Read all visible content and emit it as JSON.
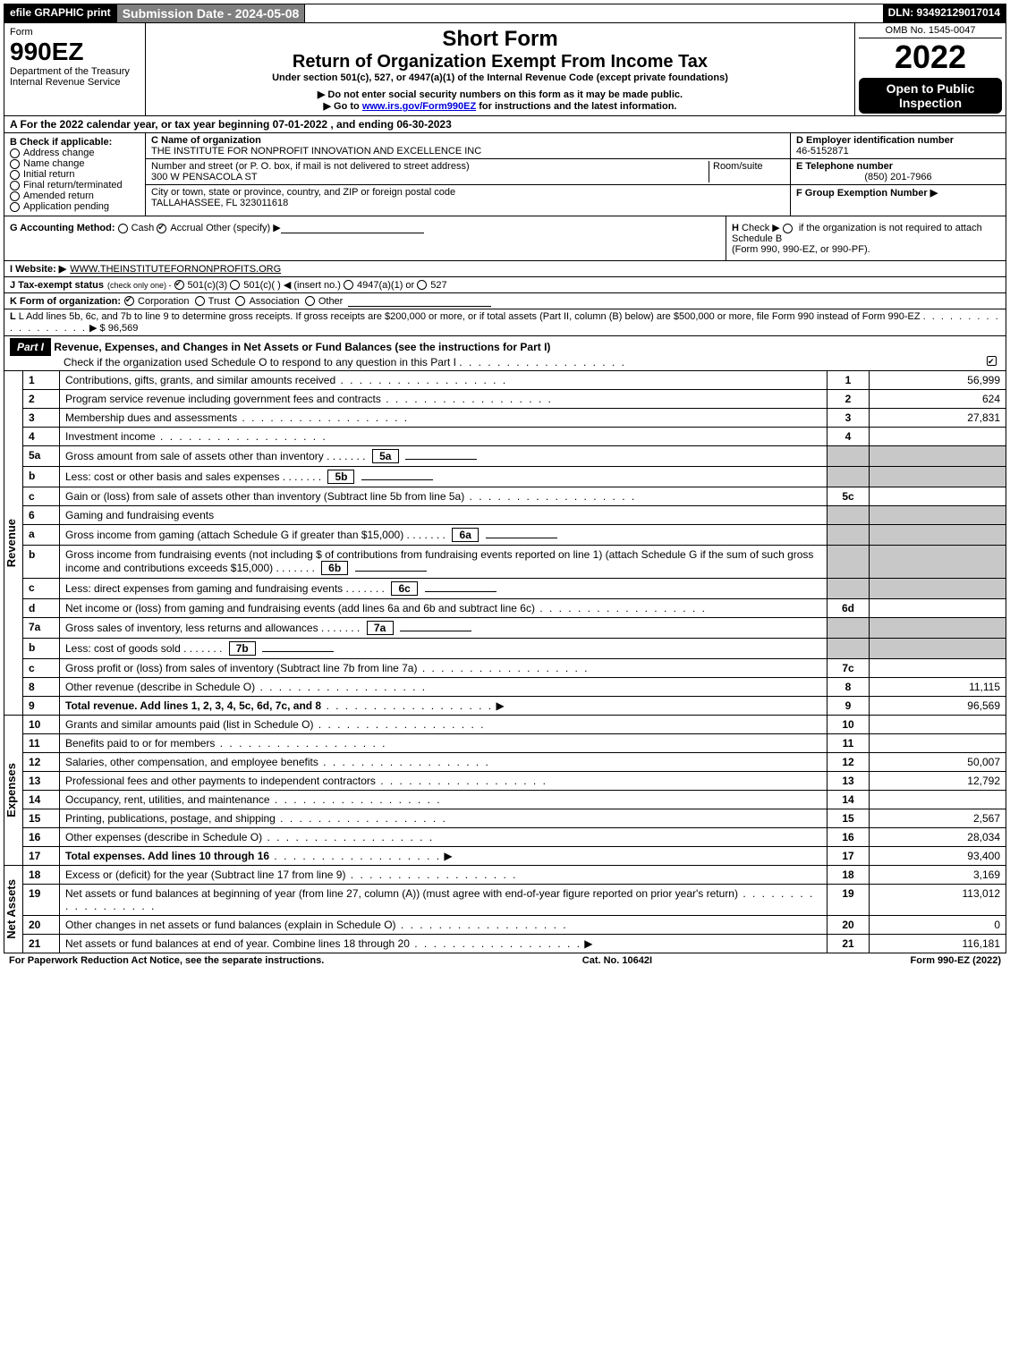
{
  "topbar": {
    "efile": "efile GRAPHIC print",
    "submission": "Submission Date - 2024-05-08",
    "dln": "DLN: 93492129017014"
  },
  "header": {
    "form_label": "Form",
    "form_number": "990EZ",
    "dept1": "Department of the Treasury",
    "dept2": "Internal Revenue Service",
    "short_form": "Short Form",
    "title": "Return of Organization Exempt From Income Tax",
    "under": "Under section 501(c), 527, or 4947(a)(1) of the Internal Revenue Code (except private foundations)",
    "note1": "▶ Do not enter social security numbers on this form as it may be made public.",
    "note2_pre": "▶ Go to ",
    "note2_link": "www.irs.gov/Form990EZ",
    "note2_post": " for instructions and the latest information.",
    "omb": "OMB No. 1545-0047",
    "year": "2022",
    "open": "Open to Public Inspection"
  },
  "sectionA": "A  For the 2022 calendar year, or tax year beginning 07-01-2022 , and ending 06-30-2023",
  "colB": {
    "title": "B  Check if applicable:",
    "items": [
      "Address change",
      "Name change",
      "Initial return",
      "Final return/terminated",
      "Amended return",
      "Application pending"
    ]
  },
  "colC": {
    "c_label": "C Name of organization",
    "org_name": "THE INSTITUTE FOR NONPROFIT INNOVATION AND EXCELLENCE INC",
    "addr_label": "Number and street (or P. O. box, if mail is not delivered to street address)",
    "room_label": "Room/suite",
    "street": "300 W PENSACOLA ST",
    "city_label": "City or town, state or province, country, and ZIP or foreign postal code",
    "city": "TALLAHASSEE, FL  323011618"
  },
  "colD": {
    "d_label": "D Employer identification number",
    "ein": "46-5152871",
    "e_label": "E Telephone number",
    "phone": "(850) 201-7966",
    "f_label": "F Group Exemption Number   ▶"
  },
  "rowG": {
    "label": "G Accounting Method:",
    "cash": "Cash",
    "accrual": "Accrual",
    "other": "Other (specify) ▶"
  },
  "rowH": {
    "label": "H",
    "text1": "Check ▶",
    "text2": "if the organization is not required to attach Schedule B",
    "text3": "(Form 990, 990-EZ, or 990-PF)."
  },
  "rowI": {
    "label": "I Website: ▶",
    "site": "WWW.THEINSTITUTEFORNONPROFITS.ORG"
  },
  "rowJ": {
    "label": "J Tax-exempt status",
    "sub": "(check only one) -",
    "opt1": "501(c)(3)",
    "opt2": "501(c)(  ) ◀ (insert no.)",
    "opt3": "4947(a)(1) or",
    "opt4": "527"
  },
  "rowK": {
    "label": "K Form of organization:",
    "opts": [
      "Corporation",
      "Trust",
      "Association",
      "Other"
    ]
  },
  "rowL": {
    "text": "L Add lines 5b, 6c, and 7b to line 9 to determine gross receipts. If gross receipts are $200,000 or more, or if total assets (Part II, column (B) below) are $500,000 or more, file Form 990 instead of Form 990-EZ",
    "amount": "▶ $ 96,569"
  },
  "part1": {
    "label": "Part I",
    "title": "Revenue, Expenses, and Changes in Net Assets or Fund Balances (see the instructions for Part I)",
    "check": "Check if the organization used Schedule O to respond to any question in this Part I"
  },
  "revenue": {
    "vert": "Revenue",
    "rows": [
      {
        "n": "1",
        "d": "Contributions, gifts, grants, and similar amounts received",
        "box": "1",
        "amt": "56,999"
      },
      {
        "n": "2",
        "d": "Program service revenue including government fees and contracts",
        "box": "2",
        "amt": "624"
      },
      {
        "n": "3",
        "d": "Membership dues and assessments",
        "box": "3",
        "amt": "27,831"
      },
      {
        "n": "4",
        "d": "Investment income",
        "box": "4",
        "amt": ""
      },
      {
        "n": "5a",
        "d": "Gross amount from sale of assets other than inventory",
        "sub": "5a",
        "shaded": true
      },
      {
        "n": "b",
        "d": "Less: cost or other basis and sales expenses",
        "sub": "5b",
        "shaded": true
      },
      {
        "n": "c",
        "d": "Gain or (loss) from sale of assets other than inventory (Subtract line 5b from line 5a)",
        "box": "5c",
        "amt": ""
      },
      {
        "n": "6",
        "d": "Gaming and fundraising events",
        "shaded": true,
        "nobox": true
      },
      {
        "n": "a",
        "d": "Gross income from gaming (attach Schedule G if greater than $15,000)",
        "sub": "6a",
        "shaded": true
      },
      {
        "n": "b",
        "d": "Gross income from fundraising events (not including $                    of contributions from fundraising events reported on line 1) (attach Schedule G if the sum of such gross income and contributions exceeds $15,000)",
        "sub": "6b",
        "shaded": true
      },
      {
        "n": "c",
        "d": "Less: direct expenses from gaming and fundraising events",
        "sub": "6c",
        "shaded": true
      },
      {
        "n": "d",
        "d": "Net income or (loss) from gaming and fundraising events (add lines 6a and 6b and subtract line 6c)",
        "box": "6d",
        "amt": ""
      },
      {
        "n": "7a",
        "d": "Gross sales of inventory, less returns and allowances",
        "sub": "7a",
        "shaded": true
      },
      {
        "n": "b",
        "d": "Less: cost of goods sold",
        "sub": "7b",
        "shaded": true
      },
      {
        "n": "c",
        "d": "Gross profit or (loss) from sales of inventory (Subtract line 7b from line 7a)",
        "box": "7c",
        "amt": ""
      },
      {
        "n": "8",
        "d": "Other revenue (describe in Schedule O)",
        "box": "8",
        "amt": "11,115"
      },
      {
        "n": "9",
        "d": "Total revenue. Add lines 1, 2, 3, 4, 5c, 6d, 7c, and 8",
        "box": "9",
        "amt": "96,569",
        "bold": true,
        "arrow": true
      }
    ]
  },
  "expenses": {
    "vert": "Expenses",
    "rows": [
      {
        "n": "10",
        "d": "Grants and similar amounts paid (list in Schedule O)",
        "box": "10",
        "amt": ""
      },
      {
        "n": "11",
        "d": "Benefits paid to or for members",
        "box": "11",
        "amt": ""
      },
      {
        "n": "12",
        "d": "Salaries, other compensation, and employee benefits",
        "box": "12",
        "amt": "50,007"
      },
      {
        "n": "13",
        "d": "Professional fees and other payments to independent contractors",
        "box": "13",
        "amt": "12,792"
      },
      {
        "n": "14",
        "d": "Occupancy, rent, utilities, and maintenance",
        "box": "14",
        "amt": ""
      },
      {
        "n": "15",
        "d": "Printing, publications, postage, and shipping",
        "box": "15",
        "amt": "2,567"
      },
      {
        "n": "16",
        "d": "Other expenses (describe in Schedule O)",
        "box": "16",
        "amt": "28,034"
      },
      {
        "n": "17",
        "d": "Total expenses. Add lines 10 through 16",
        "box": "17",
        "amt": "93,400",
        "bold": true,
        "arrow": true
      }
    ]
  },
  "netassets": {
    "vert": "Net Assets",
    "rows": [
      {
        "n": "18",
        "d": "Excess or (deficit) for the year (Subtract line 17 from line 9)",
        "box": "18",
        "amt": "3,169"
      },
      {
        "n": "19",
        "d": "Net assets or fund balances at beginning of year (from line 27, column (A)) (must agree with end-of-year figure reported on prior year's return)",
        "box": "19",
        "amt": "113,012"
      },
      {
        "n": "20",
        "d": "Other changes in net assets or fund balances (explain in Schedule O)",
        "box": "20",
        "amt": "0"
      },
      {
        "n": "21",
        "d": "Net assets or fund balances at end of year. Combine lines 18 through 20",
        "box": "21",
        "amt": "116,181",
        "arrow": true
      }
    ]
  },
  "footer": {
    "left": "For Paperwork Reduction Act Notice, see the separate instructions.",
    "mid": "Cat. No. 10642I",
    "right": "Form 990-EZ (2022)"
  }
}
